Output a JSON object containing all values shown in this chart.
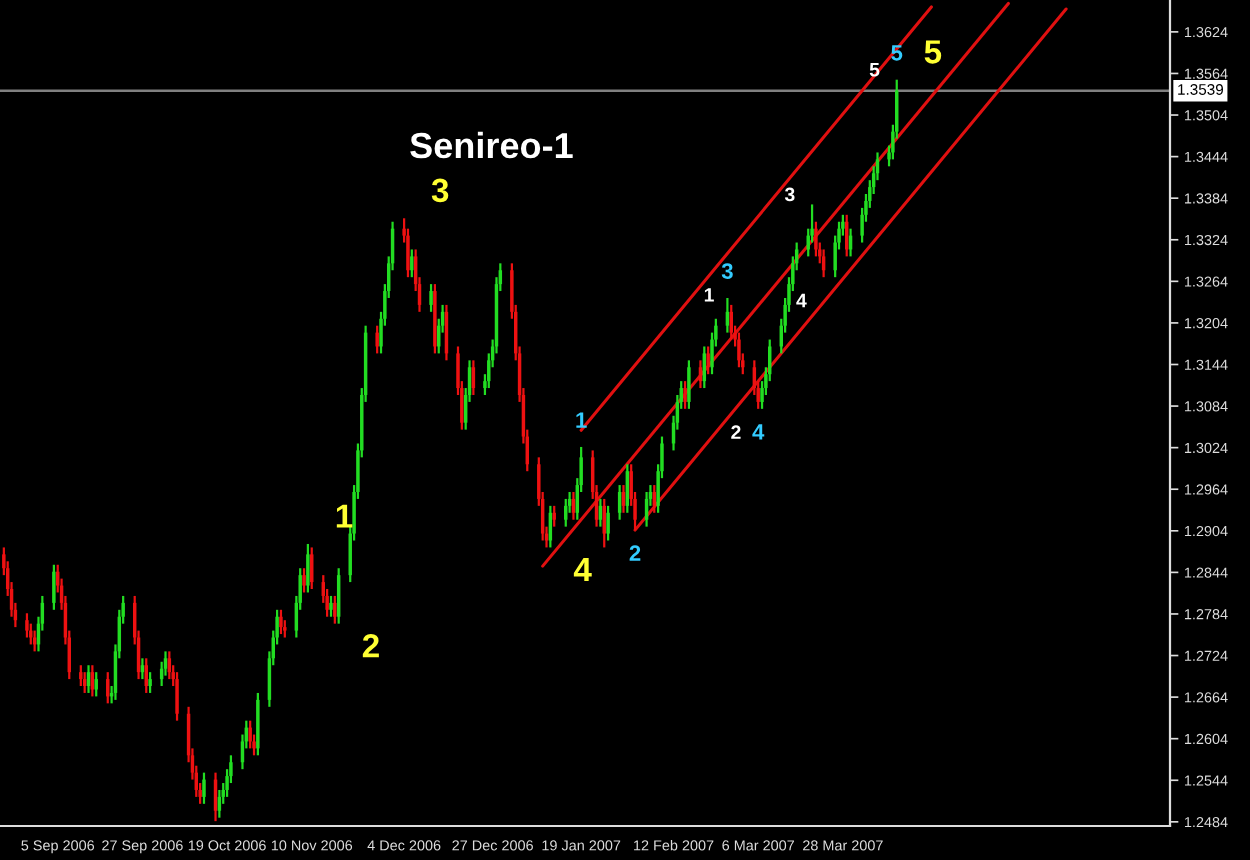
{
  "chart_data": {
    "type": "candlestick",
    "title": "Senireo-1",
    "x": [
      "2006-08-22",
      "2006-08-23",
      "2006-08-24",
      "2006-08-25",
      "2006-08-28",
      "2006-08-29",
      "2006-08-30",
      "2006-08-31",
      "2006-09-01",
      "2006-09-04",
      "2006-09-05",
      "2006-09-06",
      "2006-09-07",
      "2006-09-08",
      "2006-09-11",
      "2006-09-12",
      "2006-09-13",
      "2006-09-14",
      "2006-09-15",
      "2006-09-18",
      "2006-09-19",
      "2006-09-20",
      "2006-09-21",
      "2006-09-22",
      "2006-09-25",
      "2006-09-26",
      "2006-09-27",
      "2006-09-28",
      "2006-09-29",
      "2006-10-02",
      "2006-10-03",
      "2006-10-04",
      "2006-10-05",
      "2006-10-06",
      "2006-10-09",
      "2006-10-10",
      "2006-10-11",
      "2006-10-12",
      "2006-10-13",
      "2006-10-16",
      "2006-10-17",
      "2006-10-18",
      "2006-10-19",
      "2006-10-20",
      "2006-10-23",
      "2006-10-24",
      "2006-10-25",
      "2006-10-26",
      "2006-10-27",
      "2006-10-30",
      "2006-10-31",
      "2006-11-01",
      "2006-11-02",
      "2006-11-03",
      "2006-11-06",
      "2006-11-07",
      "2006-11-08",
      "2006-11-09",
      "2006-11-10",
      "2006-11-13",
      "2006-11-14",
      "2006-11-15",
      "2006-11-16",
      "2006-11-17",
      "2006-11-20",
      "2006-11-21",
      "2006-11-22",
      "2006-11-23",
      "2006-11-24",
      "2006-11-27",
      "2006-11-28",
      "2006-11-29",
      "2006-11-30",
      "2006-12-01",
      "2006-12-04",
      "2006-12-05",
      "2006-12-06",
      "2006-12-07",
      "2006-12-08",
      "2006-12-11",
      "2006-12-12",
      "2006-12-13",
      "2006-12-14",
      "2006-12-15",
      "2006-12-18",
      "2006-12-19",
      "2006-12-20",
      "2006-12-21",
      "2006-12-22",
      "2006-12-25",
      "2006-12-26",
      "2006-12-27",
      "2006-12-28",
      "2006-12-29",
      "2007-01-01",
      "2007-01-02",
      "2007-01-03",
      "2007-01-04",
      "2007-01-05",
      "2007-01-08",
      "2007-01-09",
      "2007-01-10",
      "2007-01-11",
      "2007-01-12",
      "2007-01-15",
      "2007-01-16",
      "2007-01-17",
      "2007-01-18",
      "2007-01-19",
      "2007-01-22",
      "2007-01-23",
      "2007-01-24",
      "2007-01-25",
      "2007-01-26",
      "2007-01-29",
      "2007-01-30",
      "2007-01-31",
      "2007-02-01",
      "2007-02-02",
      "2007-02-05",
      "2007-02-06",
      "2007-02-07",
      "2007-02-08",
      "2007-02-09",
      "2007-02-12",
      "2007-02-13",
      "2007-02-14",
      "2007-02-15",
      "2007-02-16",
      "2007-02-19",
      "2007-02-20",
      "2007-02-21",
      "2007-02-22",
      "2007-02-23",
      "2007-02-26",
      "2007-02-27",
      "2007-02-28",
      "2007-03-01",
      "2007-03-02",
      "2007-03-05",
      "2007-03-06",
      "2007-03-07",
      "2007-03-08",
      "2007-03-09",
      "2007-03-12",
      "2007-03-13",
      "2007-03-14",
      "2007-03-15",
      "2007-03-16",
      "2007-03-19",
      "2007-03-20",
      "2007-03-21",
      "2007-03-22",
      "2007-03-23",
      "2007-03-26",
      "2007-03-27",
      "2007-03-28",
      "2007-03-29",
      "2007-03-30",
      "2007-04-02",
      "2007-04-03",
      "2007-04-04",
      "2007-04-05",
      "2007-04-06",
      "2007-04-09",
      "2007-04-10",
      "2007-04-11"
    ],
    "ohlc": [
      [
        1.287,
        1.288,
        1.284,
        1.285
      ],
      [
        1.285,
        1.286,
        1.281,
        1.282
      ],
      [
        1.282,
        1.283,
        1.278,
        1.279
      ],
      [
        1.279,
        1.28,
        1.2765,
        1.2775
      ],
      [
        1.2775,
        1.2785,
        1.275,
        1.276
      ],
      [
        1.276,
        1.277,
        1.274,
        1.275
      ],
      [
        1.275,
        1.276,
        1.273,
        1.274
      ],
      [
        1.274,
        1.278,
        1.273,
        1.277
      ],
      [
        1.277,
        1.281,
        1.276,
        1.28
      ],
      [
        1.28,
        1.2855,
        1.279,
        1.2845
      ],
      [
        1.2845,
        1.2855,
        1.2815,
        1.2825
      ],
      [
        1.2825,
        1.2835,
        1.279,
        1.28
      ],
      [
        1.28,
        1.281,
        1.274,
        1.275
      ],
      [
        1.275,
        1.276,
        1.269,
        1.27
      ],
      [
        1.27,
        1.271,
        1.268,
        1.269
      ],
      [
        1.269,
        1.27,
        1.267,
        1.268
      ],
      [
        1.268,
        1.271,
        1.267,
        1.27
      ],
      [
        1.27,
        1.271,
        1.2665,
        1.2675
      ],
      [
        1.2675,
        1.27,
        1.2665,
        1.269
      ],
      [
        1.269,
        1.27,
        1.2655,
        1.2665
      ],
      [
        1.2665,
        1.268,
        1.2655,
        1.267
      ],
      [
        1.267,
        1.274,
        1.266,
        1.273
      ],
      [
        1.273,
        1.279,
        1.272,
        1.278
      ],
      [
        1.278,
        1.281,
        1.277,
        1.28
      ],
      [
        1.28,
        1.281,
        1.274,
        1.275
      ],
      [
        1.275,
        1.276,
        1.269,
        1.27
      ],
      [
        1.27,
        1.272,
        1.269,
        1.271
      ],
      [
        1.271,
        1.272,
        1.267,
        1.268
      ],
      [
        1.268,
        1.27,
        1.267,
        1.269
      ],
      [
        1.269,
        1.2715,
        1.268,
        1.2705
      ],
      [
        1.2705,
        1.273,
        1.2695,
        1.272
      ],
      [
        1.272,
        1.273,
        1.269,
        1.27
      ],
      [
        1.27,
        1.271,
        1.268,
        1.269
      ],
      [
        1.269,
        1.27,
        1.263,
        1.264
      ],
      [
        1.264,
        1.265,
        1.257,
        1.258
      ],
      [
        1.258,
        1.259,
        1.2545,
        1.2555
      ],
      [
        1.2555,
        1.2565,
        1.252,
        1.253
      ],
      [
        1.253,
        1.254,
        1.251,
        1.252
      ],
      [
        1.252,
        1.2555,
        1.251,
        1.2545
      ],
      [
        1.2545,
        1.2555,
        1.2485,
        1.25
      ],
      [
        1.25,
        1.253,
        1.249,
        1.252
      ],
      [
        1.252,
        1.254,
        1.251,
        1.253
      ],
      [
        1.253,
        1.256,
        1.252,
        1.255
      ],
      [
        1.255,
        1.258,
        1.254,
        1.257
      ],
      [
        1.257,
        1.261,
        1.256,
        1.26
      ],
      [
        1.26,
        1.263,
        1.259,
        1.262
      ],
      [
        1.262,
        1.263,
        1.259,
        1.26
      ],
      [
        1.26,
        1.261,
        1.258,
        1.259
      ],
      [
        1.259,
        1.267,
        1.258,
        1.266
      ],
      [
        1.266,
        1.273,
        1.265,
        1.272
      ],
      [
        1.272,
        1.276,
        1.271,
        1.275
      ],
      [
        1.275,
        1.279,
        1.274,
        1.278
      ],
      [
        1.278,
        1.279,
        1.2755,
        1.2765
      ],
      [
        1.2765,
        1.2775,
        1.275,
        1.276
      ],
      [
        1.276,
        1.281,
        1.275,
        1.28
      ],
      [
        1.28,
        1.285,
        1.279,
        1.284
      ],
      [
        1.284,
        1.285,
        1.2815,
        1.2825
      ],
      [
        1.2825,
        1.2885,
        1.2815,
        1.287
      ],
      [
        1.287,
        1.288,
        1.282,
        1.283
      ],
      [
        1.283,
        1.284,
        1.28,
        1.281
      ],
      [
        1.281,
        1.282,
        1.278,
        1.279
      ],
      [
        1.279,
        1.281,
        1.278,
        1.28
      ],
      [
        1.28,
        1.281,
        1.277,
        1.278
      ],
      [
        1.278,
        1.285,
        1.277,
        1.284
      ],
      [
        1.284,
        1.291,
        1.283,
        1.29
      ],
      [
        1.29,
        1.297,
        1.289,
        1.296
      ],
      [
        1.296,
        1.303,
        1.295,
        1.302
      ],
      [
        1.302,
        1.311,
        1.301,
        1.31
      ],
      [
        1.31,
        1.32,
        1.309,
        1.319
      ],
      [
        1.319,
        1.32,
        1.316,
        1.317
      ],
      [
        1.317,
        1.322,
        1.316,
        1.321
      ],
      [
        1.321,
        1.326,
        1.32,
        1.325
      ],
      [
        1.325,
        1.33,
        1.324,
        1.329
      ],
      [
        1.329,
        1.335,
        1.328,
        1.334
      ],
      [
        1.334,
        1.3355,
        1.332,
        1.333
      ],
      [
        1.333,
        1.334,
        1.327,
        1.328
      ],
      [
        1.328,
        1.331,
        1.327,
        1.33
      ],
      [
        1.33,
        1.331,
        1.325,
        1.326
      ],
      [
        1.326,
        1.327,
        1.322,
        1.323
      ],
      [
        1.323,
        1.326,
        1.322,
        1.325
      ],
      [
        1.325,
        1.326,
        1.316,
        1.317
      ],
      [
        1.317,
        1.321,
        1.316,
        1.32
      ],
      [
        1.32,
        1.323,
        1.319,
        1.322
      ],
      [
        1.322,
        1.323,
        1.315,
        1.316
      ],
      [
        1.316,
        1.317,
        1.31,
        1.311
      ],
      [
        1.311,
        1.312,
        1.305,
        1.306
      ],
      [
        1.306,
        1.311,
        1.305,
        1.31
      ],
      [
        1.31,
        1.315,
        1.309,
        1.314
      ],
      [
        1.314,
        1.315,
        1.31,
        1.311
      ],
      [
        1.311,
        1.313,
        1.31,
        1.312
      ],
      [
        1.312,
        1.316,
        1.311,
        1.315
      ],
      [
        1.315,
        1.318,
        1.314,
        1.317
      ],
      [
        1.317,
        1.327,
        1.316,
        1.326
      ],
      [
        1.326,
        1.329,
        1.325,
        1.328
      ],
      [
        1.328,
        1.329,
        1.321,
        1.322
      ],
      [
        1.322,
        1.323,
        1.315,
        1.316
      ],
      [
        1.316,
        1.317,
        1.309,
        1.31
      ],
      [
        1.31,
        1.311,
        1.303,
        1.304
      ],
      [
        1.304,
        1.305,
        1.299,
        1.3
      ],
      [
        1.3,
        1.301,
        1.294,
        1.295
      ],
      [
        1.295,
        1.296,
        1.289,
        1.29
      ],
      [
        1.29,
        1.291,
        1.288,
        1.289
      ],
      [
        1.289,
        1.294,
        1.288,
        1.293
      ],
      [
        1.293,
        1.294,
        1.291,
        1.292
      ],
      [
        1.292,
        1.295,
        1.291,
        1.294
      ],
      [
        1.294,
        1.296,
        1.293,
        1.295
      ],
      [
        1.295,
        1.296,
        1.292,
        1.293
      ],
      [
        1.293,
        1.298,
        1.292,
        1.297
      ],
      [
        1.297,
        1.3025,
        1.296,
        1.301
      ],
      [
        1.301,
        1.302,
        1.295,
        1.296
      ],
      [
        1.296,
        1.297,
        1.291,
        1.292
      ],
      [
        1.292,
        1.295,
        1.291,
        1.294
      ],
      [
        1.294,
        1.295,
        1.288,
        1.29
      ],
      [
        1.29,
        1.294,
        1.289,
        1.293
      ],
      [
        1.293,
        1.297,
        1.292,
        1.296
      ],
      [
        1.296,
        1.297,
        1.293,
        1.294
      ],
      [
        1.294,
        1.3,
        1.293,
        1.299
      ],
      [
        1.299,
        1.3,
        1.294,
        1.295
      ],
      [
        1.295,
        1.296,
        1.2905,
        1.292
      ],
      [
        1.292,
        1.296,
        1.291,
        1.295
      ],
      [
        1.295,
        1.297,
        1.294,
        1.296
      ],
      [
        1.296,
        1.297,
        1.293,
        1.294
      ],
      [
        1.294,
        1.3,
        1.293,
        1.299
      ],
      [
        1.299,
        1.304,
        1.298,
        1.303
      ],
      [
        1.303,
        1.307,
        1.302,
        1.306
      ],
      [
        1.306,
        1.31,
        1.305,
        1.309
      ],
      [
        1.309,
        1.312,
        1.308,
        1.311
      ],
      [
        1.311,
        1.312,
        1.308,
        1.309
      ],
      [
        1.309,
        1.315,
        1.308,
        1.314
      ],
      [
        1.314,
        1.315,
        1.311,
        1.312
      ],
      [
        1.312,
        1.317,
        1.311,
        1.316
      ],
      [
        1.316,
        1.317,
        1.313,
        1.314
      ],
      [
        1.314,
        1.319,
        1.313,
        1.318
      ],
      [
        1.318,
        1.321,
        1.317,
        1.32
      ],
      [
        1.32,
        1.324,
        1.319,
        1.322
      ],
      [
        1.322,
        1.323,
        1.318,
        1.319
      ],
      [
        1.319,
        1.32,
        1.317,
        1.318
      ],
      [
        1.318,
        1.319,
        1.314,
        1.315
      ],
      [
        1.315,
        1.316,
        1.313,
        1.314
      ],
      [
        1.314,
        1.315,
        1.31,
        1.311
      ],
      [
        1.311,
        1.312,
        1.308,
        1.309
      ],
      [
        1.309,
        1.312,
        1.308,
        1.311
      ],
      [
        1.311,
        1.314,
        1.31,
        1.313
      ],
      [
        1.313,
        1.318,
        1.312,
        1.317
      ],
      [
        1.317,
        1.321,
        1.316,
        1.32
      ],
      [
        1.32,
        1.324,
        1.319,
        1.323
      ],
      [
        1.323,
        1.327,
        1.322,
        1.326
      ],
      [
        1.326,
        1.33,
        1.325,
        1.329
      ],
      [
        1.329,
        1.332,
        1.328,
        1.331
      ],
      [
        1.331,
        1.334,
        1.33,
        1.333
      ],
      [
        1.333,
        1.3375,
        1.332,
        1.334
      ],
      [
        1.334,
        1.335,
        1.33,
        1.331
      ],
      [
        1.331,
        1.332,
        1.329,
        1.33
      ],
      [
        1.33,
        1.331,
        1.327,
        1.328
      ],
      [
        1.328,
        1.333,
        1.327,
        1.332
      ],
      [
        1.332,
        1.335,
        1.331,
        1.334
      ],
      [
        1.334,
        1.336,
        1.333,
        1.335
      ],
      [
        1.335,
        1.336,
        1.33,
        1.331
      ],
      [
        1.331,
        1.334,
        1.33,
        1.333
      ],
      [
        1.333,
        1.337,
        1.332,
        1.336
      ],
      [
        1.336,
        1.339,
        1.335,
        1.338
      ],
      [
        1.338,
        1.341,
        1.337,
        1.34
      ],
      [
        1.34,
        1.343,
        1.339,
        1.342
      ],
      [
        1.342,
        1.345,
        1.341,
        1.344
      ],
      [
        1.344,
        1.346,
        1.343,
        1.345
      ],
      [
        1.345,
        1.349,
        1.344,
        1.348
      ],
      [
        1.348,
        1.3555,
        1.347,
        1.3539
      ]
    ],
    "series": [
      {
        "type": "line",
        "color": "#e01010",
        "x": [
          "2007-01-19",
          "2007-04-20"
        ],
        "values": [
          1.3049,
          1.366
        ]
      },
      {
        "type": "line",
        "color": "#e01010",
        "x": [
          "2007-01-09",
          "2007-05-10"
        ],
        "values": [
          1.2853,
          1.3665
        ]
      },
      {
        "type": "line",
        "color": "#e01010",
        "x": [
          "2007-02-02",
          "2007-05-25"
        ],
        "values": [
          1.2905,
          1.3657
        ]
      }
    ],
    "xlim": [
      "2006-08-21",
      "2007-06-21"
    ],
    "xticks": [
      {
        "value": "2006-09-05",
        "label": "5 Sep 2006"
      },
      {
        "value": "2006-09-27",
        "label": "27 Sep 2006"
      },
      {
        "value": "2006-10-19",
        "label": "19 Oct 2006"
      },
      {
        "value": "2006-11-10",
        "label": "10 Nov 2006"
      },
      {
        "value": "2006-12-04",
        "label": "4 Dec 2006"
      },
      {
        "value": "2006-12-27",
        "label": "27 Dec 2006"
      },
      {
        "value": "2007-01-19",
        "label": "19 Jan 2007"
      },
      {
        "value": "2007-02-12",
        "label": "12 Feb 2007"
      },
      {
        "value": "2007-03-06",
        "label": "6 Mar 2007"
      },
      {
        "value": "2007-03-28",
        "label": "28 Mar 2007"
      }
    ],
    "ylim": [
      1.2478,
      1.367
    ],
    "yticks": [
      1.2484,
      1.2544,
      1.2604,
      1.2664,
      1.2724,
      1.2784,
      1.2844,
      1.2904,
      1.2964,
      1.3024,
      1.3084,
      1.3144,
      1.3204,
      1.3264,
      1.3324,
      1.3384,
      1.3444,
      1.3504,
      1.3564,
      1.3624
    ],
    "ref_lines": [
      {
        "axis": "y",
        "value": 1.3539,
        "label": "1.3539",
        "color": "#808080"
      }
    ],
    "annotations": [
      {
        "text": "1",
        "x": "2006-11-09",
        "y": 1.2885
      },
      {
        "text": "2",
        "x": "2006-11-16",
        "y": 1.277
      },
      {
        "text": "3",
        "x": "2006-12-04",
        "y": 1.3355
      },
      {
        "text": "4",
        "x": "2007-01-10",
        "y": 1.288
      },
      {
        "text": "5",
        "x": "2007-04-11",
        "y": 1.3555
      },
      {
        "text": "1",
        "x": "2007-01-19",
        "y": 1.3025
      },
      {
        "text": "2",
        "x": "2007-02-02",
        "y": 1.2905
      },
      {
        "text": "3",
        "x": "2007-02-26",
        "y": 1.324
      },
      {
        "text": "4",
        "x": "2007-03-06",
        "y": 1.308
      },
      {
        "text": "5",
        "x": "2007-04-11",
        "y": 1.3555
      },
      {
        "text": "1",
        "x": "2007-02-27",
        "y": 1.323
      },
      {
        "text": "2",
        "x": "2007-03-06",
        "y": 1.308
      },
      {
        "text": "3",
        "x": "2007-03-20",
        "y": 1.3375
      },
      {
        "text": "4",
        "x": "2007-03-23",
        "y": 1.327
      },
      {
        "text": "5",
        "x": "2007-04-11",
        "y": 1.3555
      }
    ]
  }
}
